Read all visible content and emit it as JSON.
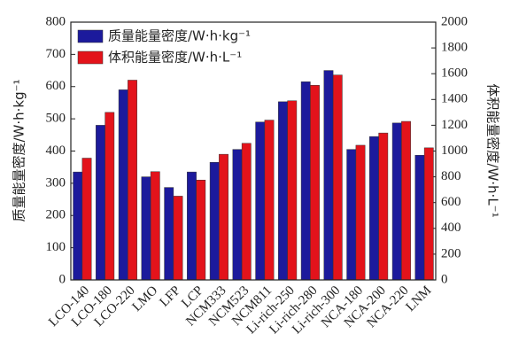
{
  "chart_data": {
    "type": "bar",
    "y_label": "质量能量密度/W·h·kg⁻¹",
    "y2_label": "体积能量密度/W·h·L⁻¹",
    "categories": [
      "LCO-140",
      "LCO-180",
      "LCO-220",
      "LMO",
      "LFP",
      "LCP",
      "NCM333",
      "NCM523",
      "NCM811",
      "Li-rich-250",
      "Li-rich-280",
      "Li-rich-300",
      "NCA-180",
      "NCA-200",
      "NCA-220",
      "LNM"
    ],
    "series": [
      {
        "name": "质量能量密度/W·h·kg⁻¹",
        "color": "#1c1a9c",
        "values": [
          335,
          480,
          590,
          320,
          287,
          335,
          365,
          405,
          490,
          553,
          615,
          650,
          405,
          445,
          487,
          387
        ]
      },
      {
        "name": "体积能量密度/W·h·L⁻¹",
        "color": "#e3131b",
        "axis": "y2",
        "values": [
          945,
          1300,
          1550,
          840,
          650,
          775,
          975,
          1060,
          1240,
          1390,
          1510,
          1590,
          1045,
          1140,
          1230,
          1025
        ]
      }
    ],
    "ylim": [
      0,
      800
    ],
    "yticks": [
      0,
      100,
      200,
      300,
      400,
      500,
      600,
      700,
      800
    ],
    "y2lim": [
      0,
      2000
    ],
    "y2ticks": [
      0,
      200,
      400,
      600,
      800,
      1000,
      1200,
      1400,
      1600,
      1800,
      2000
    ],
    "legend": "top-left",
    "grid": false
  }
}
